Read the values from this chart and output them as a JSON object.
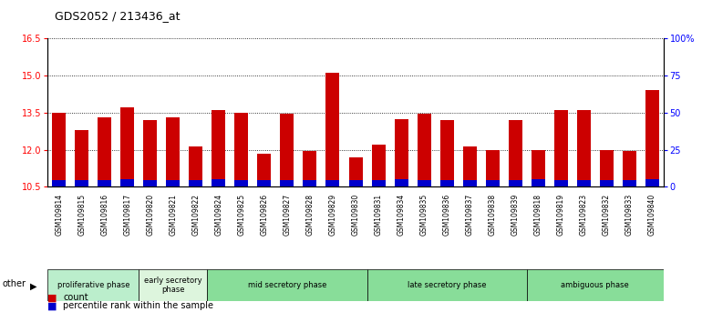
{
  "title": "GDS2052 / 213436_at",
  "samples": [
    "GSM109814",
    "GSM109815",
    "GSM109816",
    "GSM109817",
    "GSM109820",
    "GSM109821",
    "GSM109822",
    "GSM109824",
    "GSM109825",
    "GSM109826",
    "GSM109827",
    "GSM109828",
    "GSM109829",
    "GSM109830",
    "GSM109831",
    "GSM109834",
    "GSM109835",
    "GSM109836",
    "GSM109837",
    "GSM109838",
    "GSM109839",
    "GSM109818",
    "GSM109819",
    "GSM109823",
    "GSM109832",
    "GSM109833",
    "GSM109840"
  ],
  "count_values": [
    13.5,
    12.8,
    13.3,
    13.7,
    13.2,
    13.3,
    12.15,
    13.6,
    13.5,
    11.85,
    13.45,
    11.95,
    15.1,
    11.7,
    12.2,
    13.25,
    13.45,
    13.2,
    12.15,
    12.0,
    13.2,
    12.0,
    13.6,
    13.6,
    12.0,
    11.95,
    14.4
  ],
  "percentile_values": [
    0.28,
    0.28,
    0.28,
    0.32,
    0.28,
    0.28,
    0.28,
    0.32,
    0.28,
    0.28,
    0.28,
    0.28,
    0.28,
    0.28,
    0.28,
    0.32,
    0.28,
    0.28,
    0.28,
    0.28,
    0.28,
    0.32,
    0.28,
    0.28,
    0.28,
    0.28,
    0.32
  ],
  "ymin": 10.5,
  "ymax": 16.5,
  "yticks": [
    10.5,
    12.0,
    13.5,
    15.0,
    16.5
  ],
  "right_yticks": [
    0,
    25,
    50,
    75,
    100
  ],
  "right_yticklabels": [
    "0",
    "25",
    "50",
    "75",
    "100%"
  ],
  "bar_color_red": "#cc0000",
  "bar_color_blue": "#0000cc",
  "phase_groups": [
    {
      "label": "proliferative phase",
      "start": 0,
      "end": 4,
      "color": "#bbeecc"
    },
    {
      "label": "early secretory\nphase",
      "start": 4,
      "end": 7,
      "color": "#ddf5dd"
    },
    {
      "label": "mid secretory phase",
      "start": 7,
      "end": 14,
      "color": "#88dd99"
    },
    {
      "label": "late secretory phase",
      "start": 14,
      "end": 21,
      "color": "#88dd99"
    },
    {
      "label": "ambiguous phase",
      "start": 21,
      "end": 27,
      "color": "#88dd99"
    }
  ],
  "legend_count": "count",
  "legend_percentile": "percentile rank within the sample",
  "other_label": "other"
}
